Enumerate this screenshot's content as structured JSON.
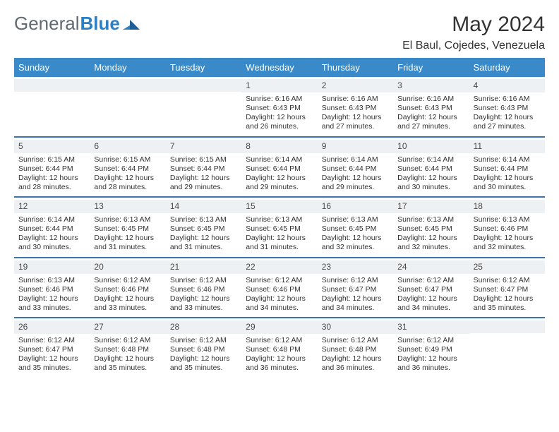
{
  "logo": {
    "part1": "General",
    "part2": "Blue"
  },
  "title": "May 2024",
  "subtitle": "El Baul, Cojedes, Venezuela",
  "colors": {
    "header_bg": "#3a8ac9",
    "header_text": "#ffffff",
    "daynum_bg": "#eef1f3",
    "separator": "#2f6ea8",
    "text": "#333333",
    "logo_gray": "#5f6a72",
    "logo_blue": "#2a7fc5",
    "page_bg": "#ffffff"
  },
  "daynames": [
    "Sunday",
    "Monday",
    "Tuesday",
    "Wednesday",
    "Thursday",
    "Friday",
    "Saturday"
  ],
  "labels": {
    "sunrise": "Sunrise:",
    "sunset": "Sunset:",
    "daylight": "Daylight:"
  },
  "weeks": [
    [
      {
        "num": "",
        "empty": true
      },
      {
        "num": "",
        "empty": true
      },
      {
        "num": "",
        "empty": true
      },
      {
        "num": "1",
        "sunrise": "6:16 AM",
        "sunset": "6:43 PM",
        "daylight": "12 hours and 26 minutes."
      },
      {
        "num": "2",
        "sunrise": "6:16 AM",
        "sunset": "6:43 PM",
        "daylight": "12 hours and 27 minutes."
      },
      {
        "num": "3",
        "sunrise": "6:16 AM",
        "sunset": "6:43 PM",
        "daylight": "12 hours and 27 minutes."
      },
      {
        "num": "4",
        "sunrise": "6:16 AM",
        "sunset": "6:43 PM",
        "daylight": "12 hours and 27 minutes."
      }
    ],
    [
      {
        "num": "5",
        "sunrise": "6:15 AM",
        "sunset": "6:44 PM",
        "daylight": "12 hours and 28 minutes."
      },
      {
        "num": "6",
        "sunrise": "6:15 AM",
        "sunset": "6:44 PM",
        "daylight": "12 hours and 28 minutes."
      },
      {
        "num": "7",
        "sunrise": "6:15 AM",
        "sunset": "6:44 PM",
        "daylight": "12 hours and 29 minutes."
      },
      {
        "num": "8",
        "sunrise": "6:14 AM",
        "sunset": "6:44 PM",
        "daylight": "12 hours and 29 minutes."
      },
      {
        "num": "9",
        "sunrise": "6:14 AM",
        "sunset": "6:44 PM",
        "daylight": "12 hours and 29 minutes."
      },
      {
        "num": "10",
        "sunrise": "6:14 AM",
        "sunset": "6:44 PM",
        "daylight": "12 hours and 30 minutes."
      },
      {
        "num": "11",
        "sunrise": "6:14 AM",
        "sunset": "6:44 PM",
        "daylight": "12 hours and 30 minutes."
      }
    ],
    [
      {
        "num": "12",
        "sunrise": "6:14 AM",
        "sunset": "6:44 PM",
        "daylight": "12 hours and 30 minutes."
      },
      {
        "num": "13",
        "sunrise": "6:13 AM",
        "sunset": "6:45 PM",
        "daylight": "12 hours and 31 minutes."
      },
      {
        "num": "14",
        "sunrise": "6:13 AM",
        "sunset": "6:45 PM",
        "daylight": "12 hours and 31 minutes."
      },
      {
        "num": "15",
        "sunrise": "6:13 AM",
        "sunset": "6:45 PM",
        "daylight": "12 hours and 31 minutes."
      },
      {
        "num": "16",
        "sunrise": "6:13 AM",
        "sunset": "6:45 PM",
        "daylight": "12 hours and 32 minutes."
      },
      {
        "num": "17",
        "sunrise": "6:13 AM",
        "sunset": "6:45 PM",
        "daylight": "12 hours and 32 minutes."
      },
      {
        "num": "18",
        "sunrise": "6:13 AM",
        "sunset": "6:46 PM",
        "daylight": "12 hours and 32 minutes."
      }
    ],
    [
      {
        "num": "19",
        "sunrise": "6:13 AM",
        "sunset": "6:46 PM",
        "daylight": "12 hours and 33 minutes."
      },
      {
        "num": "20",
        "sunrise": "6:12 AM",
        "sunset": "6:46 PM",
        "daylight": "12 hours and 33 minutes."
      },
      {
        "num": "21",
        "sunrise": "6:12 AM",
        "sunset": "6:46 PM",
        "daylight": "12 hours and 33 minutes."
      },
      {
        "num": "22",
        "sunrise": "6:12 AM",
        "sunset": "6:46 PM",
        "daylight": "12 hours and 34 minutes."
      },
      {
        "num": "23",
        "sunrise": "6:12 AM",
        "sunset": "6:47 PM",
        "daylight": "12 hours and 34 minutes."
      },
      {
        "num": "24",
        "sunrise": "6:12 AM",
        "sunset": "6:47 PM",
        "daylight": "12 hours and 34 minutes."
      },
      {
        "num": "25",
        "sunrise": "6:12 AM",
        "sunset": "6:47 PM",
        "daylight": "12 hours and 35 minutes."
      }
    ],
    [
      {
        "num": "26",
        "sunrise": "6:12 AM",
        "sunset": "6:47 PM",
        "daylight": "12 hours and 35 minutes."
      },
      {
        "num": "27",
        "sunrise": "6:12 AM",
        "sunset": "6:48 PM",
        "daylight": "12 hours and 35 minutes."
      },
      {
        "num": "28",
        "sunrise": "6:12 AM",
        "sunset": "6:48 PM",
        "daylight": "12 hours and 35 minutes."
      },
      {
        "num": "29",
        "sunrise": "6:12 AM",
        "sunset": "6:48 PM",
        "daylight": "12 hours and 36 minutes."
      },
      {
        "num": "30",
        "sunrise": "6:12 AM",
        "sunset": "6:48 PM",
        "daylight": "12 hours and 36 minutes."
      },
      {
        "num": "31",
        "sunrise": "6:12 AM",
        "sunset": "6:49 PM",
        "daylight": "12 hours and 36 minutes."
      },
      {
        "num": "",
        "empty": true
      }
    ]
  ]
}
